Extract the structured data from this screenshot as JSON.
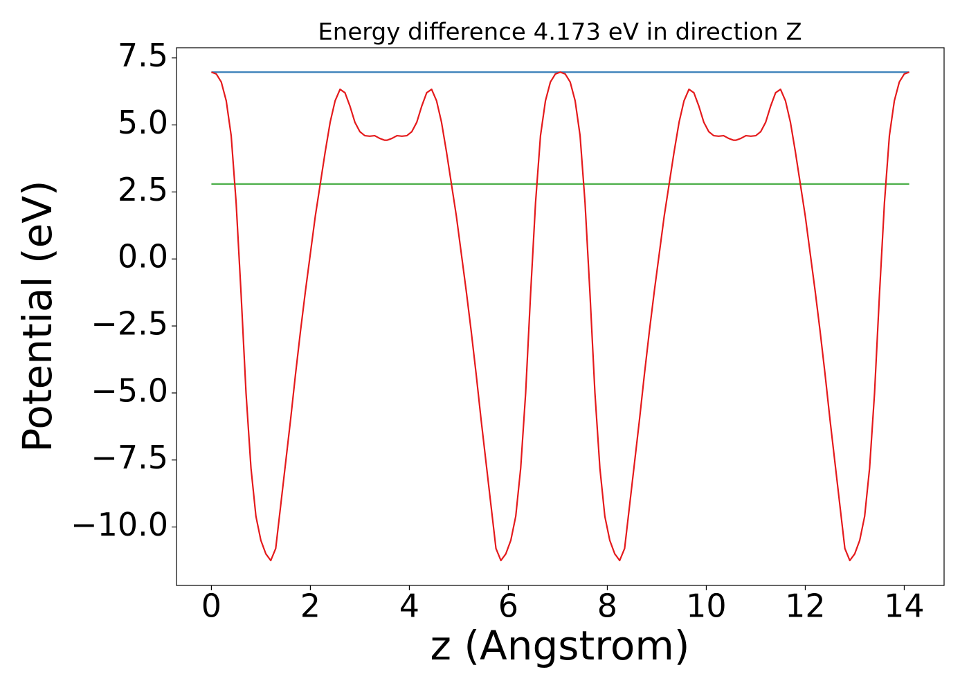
{
  "chart_data": {
    "type": "line",
    "title": "Energy difference 4.173 eV in direction Z",
    "xlabel": "z (Angstrom)",
    "ylabel": "Potential (eV)",
    "xlim": [
      -0.705,
      14.805
    ],
    "ylim": [
      -12.18,
      7.88
    ],
    "xticks": [
      0,
      2,
      4,
      6,
      8,
      10,
      12,
      14
    ],
    "yticks": [
      {
        "value": -10,
        "label": "−10.0"
      },
      {
        "value": -7.5,
        "label": "−7.5"
      },
      {
        "value": -5,
        "label": "−5.0"
      },
      {
        "value": -2.5,
        "label": "−2.5"
      },
      {
        "value": 0,
        "label": "0.0"
      },
      2.5,
      {
        "value": 5,
        "label": "5.0"
      },
      7.5
    ],
    "grid": false,
    "series": [
      {
        "color": "#e41a1c",
        "x": [
          0,
          0.1,
          0.2,
          0.3,
          0.4,
          0.5,
          0.6,
          0.7,
          0.8,
          0.9,
          1.0,
          1.1,
          1.2,
          1.3,
          1.4,
          1.5,
          1.6,
          1.7,
          1.8,
          1.9,
          2.0,
          2.1,
          2.2,
          2.3,
          2.4,
          2.5,
          2.6,
          2.7,
          2.8,
          2.9,
          3.0,
          3.1,
          3.2,
          3.3,
          3.4,
          3.5,
          3.55,
          3.65,
          3.75,
          3.85,
          3.95,
          4.05,
          4.15,
          4.25,
          4.35,
          4.45,
          4.55,
          4.65,
          4.75,
          4.85,
          4.95,
          5.05,
          5.15,
          5.25,
          5.35,
          5.45,
          5.55,
          5.65,
          5.75,
          5.85,
          5.95,
          6.05,
          6.15,
          6.25,
          6.35,
          6.45,
          6.55,
          6.65,
          6.75,
          6.85,
          6.95,
          7.05,
          7.15,
          7.25,
          7.35,
          7.45,
          7.55,
          7.65,
          7.75,
          7.85,
          7.95,
          8.05,
          8.15,
          8.25,
          8.35,
          8.45,
          8.55,
          8.65,
          8.75,
          8.85,
          8.95,
          9.05,
          9.15,
          9.25,
          9.35,
          9.45,
          9.55,
          9.65,
          9.75,
          9.85,
          9.95,
          10.05,
          10.15,
          10.25,
          10.35,
          10.45,
          10.55,
          10.6,
          10.7,
          10.8,
          10.9,
          11.0,
          11.1,
          11.2,
          11.3,
          11.4,
          11.5,
          11.6,
          11.7,
          11.8,
          11.9,
          12.0,
          12.1,
          12.2,
          12.3,
          12.4,
          12.5,
          12.6,
          12.7,
          12.8,
          12.9,
          13.0,
          13.1,
          13.2,
          13.3,
          13.4,
          13.5,
          13.6,
          13.7,
          13.8,
          13.9,
          14.0,
          14.1
        ],
        "values": [
          6.97,
          6.9,
          6.6,
          5.9,
          4.6,
          2.1,
          -1.3,
          -5.0,
          -7.8,
          -9.6,
          -10.5,
          -11.0,
          -11.25,
          -10.8,
          -9.2,
          -7.6,
          -6.0,
          -4.3,
          -2.7,
          -1.2,
          0.2,
          1.6,
          2.8,
          4.0,
          5.1,
          5.9,
          6.33,
          6.2,
          5.7,
          5.1,
          4.75,
          4.6,
          4.58,
          4.6,
          4.5,
          4.43,
          4.43,
          4.5,
          4.6,
          4.58,
          4.6,
          4.75,
          5.1,
          5.7,
          6.2,
          6.33,
          5.9,
          5.1,
          4.0,
          2.8,
          1.6,
          0.2,
          -1.2,
          -2.7,
          -4.3,
          -6.0,
          -7.6,
          -9.2,
          -10.8,
          -11.25,
          -11.0,
          -10.5,
          -9.6,
          -7.8,
          -5.0,
          -1.3,
          2.1,
          4.6,
          5.9,
          6.6,
          6.9,
          6.97,
          6.9,
          6.6,
          5.9,
          4.6,
          2.1,
          -1.3,
          -5.0,
          -7.8,
          -9.6,
          -10.5,
          -11.0,
          -11.25,
          -10.8,
          -9.2,
          -7.6,
          -6.0,
          -4.3,
          -2.7,
          -1.2,
          0.2,
          1.6,
          2.8,
          4.0,
          5.1,
          5.9,
          6.33,
          6.2,
          5.7,
          5.1,
          4.75,
          4.6,
          4.58,
          4.6,
          4.5,
          4.43,
          4.43,
          4.5,
          4.6,
          4.58,
          4.6,
          4.75,
          5.1,
          5.7,
          6.2,
          6.33,
          5.9,
          5.1,
          4.0,
          2.8,
          1.6,
          0.2,
          -1.2,
          -2.7,
          -4.3,
          -6.0,
          -7.6,
          -9.2,
          -10.8,
          -11.25,
          -11.0,
          -10.5,
          -9.6,
          -7.8,
          -5.0,
          -1.3,
          2.1,
          4.6,
          5.9,
          6.6,
          6.9,
          6.97
        ]
      },
      {
        "color": "#377eb8",
        "x": [
          0,
          14.1
        ],
        "values": [
          6.97,
          6.97
        ]
      },
      {
        "color": "#4daf4a",
        "x": [
          0,
          14.1
        ],
        "values": [
          2.797,
          2.797
        ]
      }
    ]
  }
}
